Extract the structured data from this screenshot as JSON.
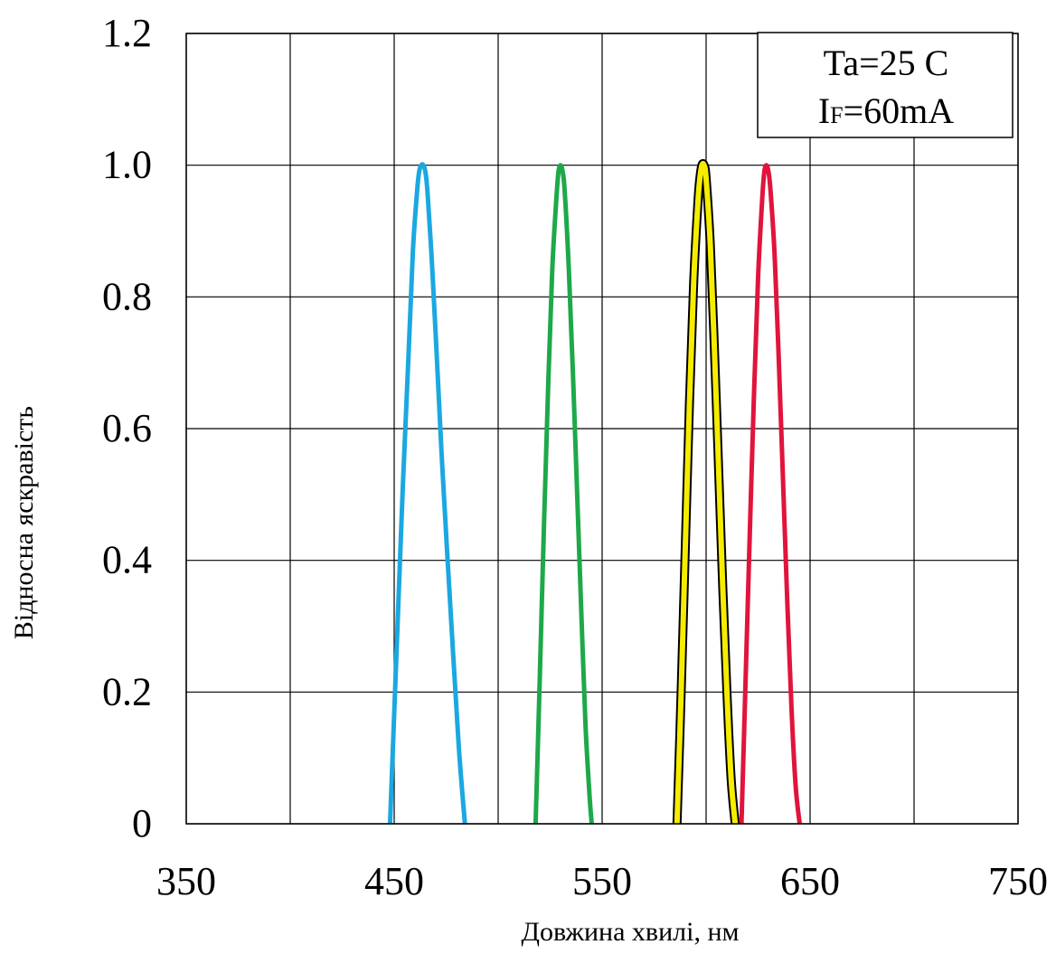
{
  "chart_data": {
    "type": "line",
    "title": "",
    "xlabel": "Довжина хвилі, нм",
    "ylabel": "Відносна яскравість",
    "xlim": [
      350,
      750
    ],
    "ylim": [
      0,
      1.2
    ],
    "x_ticks": [
      "350",
      "450",
      "550",
      "650",
      "750"
    ],
    "x_tick_values": [
      350,
      450,
      550,
      650,
      750
    ],
    "x_grid_values": [
      350,
      400,
      450,
      500,
      550,
      600,
      650,
      700,
      750
    ],
    "y_ticks": [
      "0",
      "0.2",
      "0.4",
      "0.6",
      "0.8",
      "1.0",
      "1.2"
    ],
    "y_tick_values": [
      0,
      0.2,
      0.4,
      0.6,
      0.8,
      1.0,
      1.2
    ],
    "grid": true,
    "legend_position": "top-right",
    "annotation": {
      "line1": "Ta=25 C",
      "line2_main": "I",
      "line2_sub": "F",
      "line2_rest": "=60mA"
    },
    "series": [
      {
        "color": "#1ba8e0",
        "outline": "",
        "x": [
          448,
          451,
          454,
          457,
          459,
          461,
          462,
          463,
          464,
          465,
          466,
          468,
          470,
          473,
          477,
          481,
          484
        ],
        "y": [
          0,
          0.25,
          0.5,
          0.72,
          0.87,
          0.96,
          0.99,
          1.0,
          1.0,
          0.99,
          0.96,
          0.86,
          0.74,
          0.55,
          0.33,
          0.12,
          0
        ]
      },
      {
        "color": "#1ea84a",
        "outline": "",
        "x": [
          518,
          520,
          522,
          524,
          526,
          528,
          529,
          530,
          531,
          532,
          534,
          536,
          538,
          540,
          542,
          544,
          545
        ],
        "y": [
          0,
          0.22,
          0.45,
          0.66,
          0.84,
          0.95,
          0.99,
          1.0,
          0.99,
          0.96,
          0.84,
          0.68,
          0.5,
          0.32,
          0.15,
          0.04,
          0
        ]
      },
      {
        "color": "#f5ec00",
        "outline": "#000000",
        "x": [
          586,
          588,
          590,
          592,
          594,
          596,
          597,
          598,
          599,
          600,
          602,
          604,
          606,
          608,
          610,
          612,
          614
        ],
        "y": [
          0,
          0.2,
          0.42,
          0.64,
          0.82,
          0.94,
          0.98,
          1.0,
          1.0,
          0.98,
          0.88,
          0.72,
          0.54,
          0.36,
          0.2,
          0.07,
          0
        ]
      },
      {
        "color": "#e0143c",
        "outline": "",
        "x": [
          617,
          619,
          621,
          623,
          625,
          627,
          628,
          629,
          630,
          631,
          633,
          635,
          637,
          639,
          641,
          643,
          645
        ],
        "y": [
          0,
          0.22,
          0.44,
          0.65,
          0.83,
          0.95,
          0.99,
          1.0,
          0.99,
          0.96,
          0.86,
          0.7,
          0.52,
          0.34,
          0.18,
          0.06,
          0
        ]
      }
    ]
  }
}
